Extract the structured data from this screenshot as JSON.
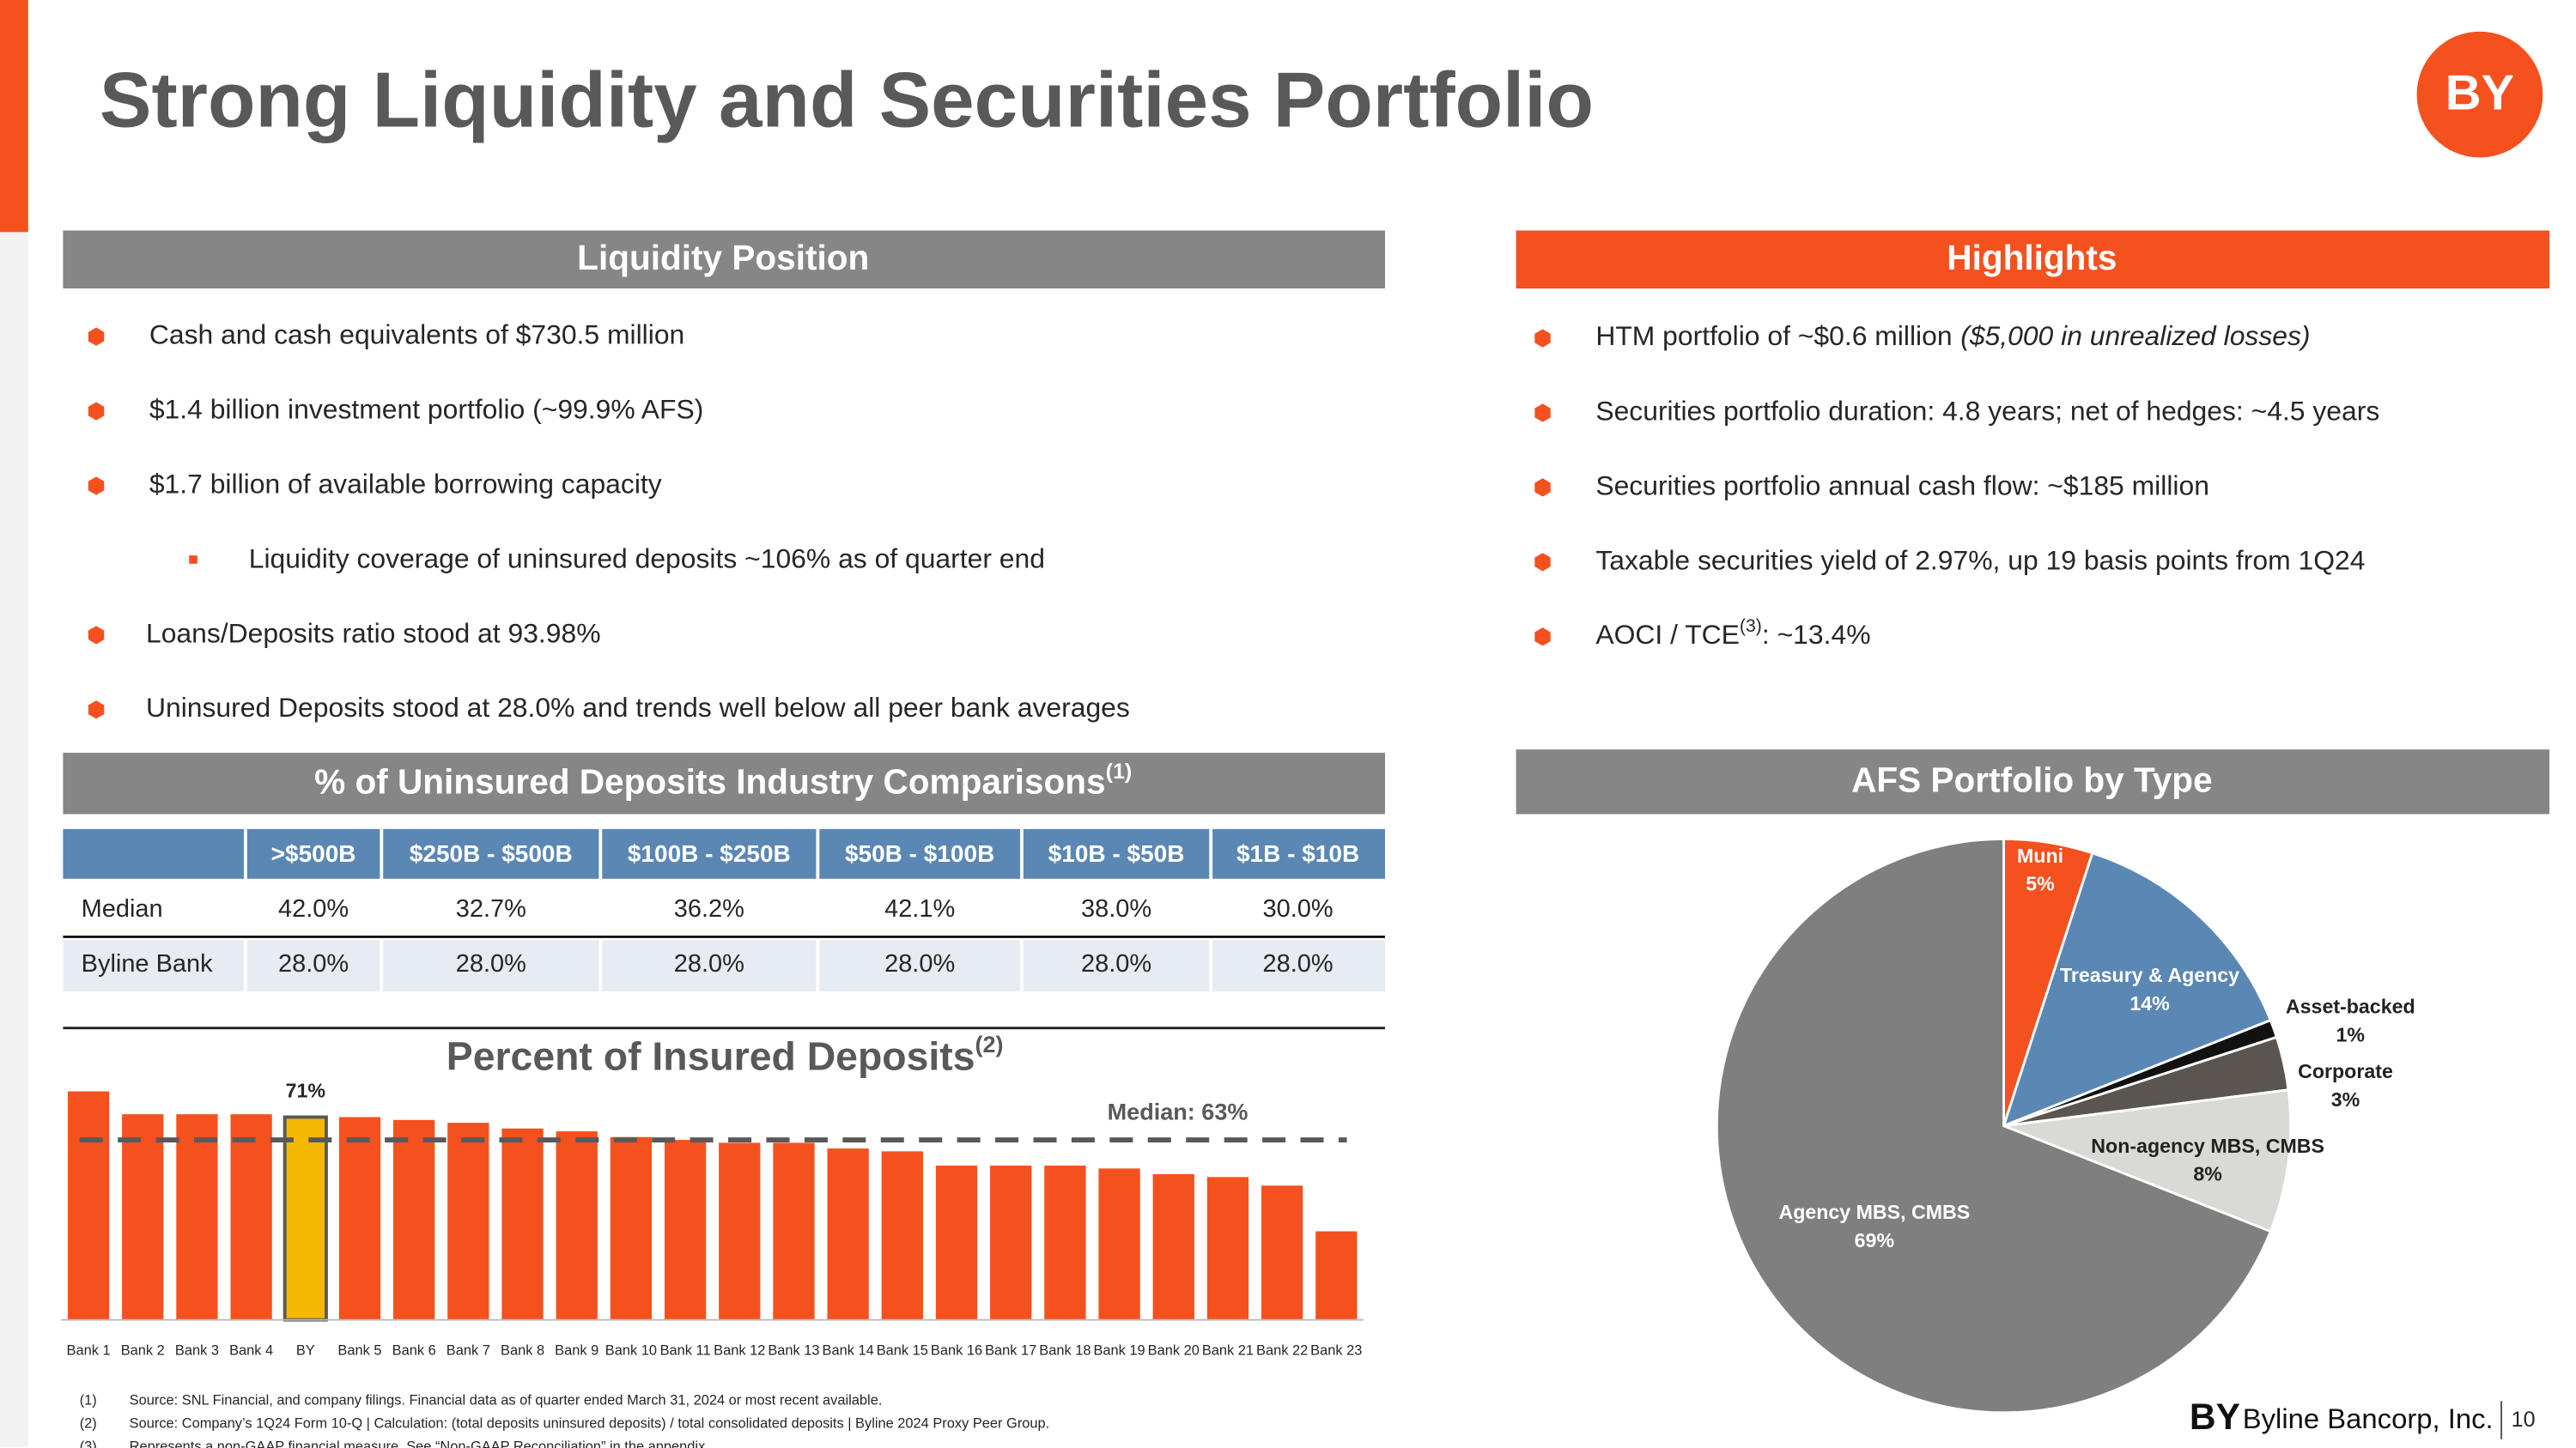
{
  "header": {
    "title": "Strong Liquidity and Securities Portfolio",
    "logo": "BY"
  },
  "liquidity": {
    "heading": "Liquidity Position",
    "bullets": [
      "Cash and cash equivalents of $730.5 million",
      "$1.4 billion investment portfolio (~99.9% AFS)",
      "$1.7 billion of available borrowing capacity"
    ],
    "sub_bullet": "Liquidity coverage of uninsured deposits ~106% as of quarter end",
    "more_bullets": [
      "Loans/Deposits ratio stood at 93.98%",
      "Uninsured Deposits stood at 28.0% and trends well below all peer bank averages"
    ]
  },
  "highlights": {
    "heading": "Highlights",
    "htm": "HTM portfolio of ~$0.6 million",
    "htm_note": "($5,000 in unrealized losses)",
    "bullets": [
      "Securities portfolio duration: 4.8 years; net of hedges: ~4.5 years",
      "Securities portfolio annual cash flow: ~$185 million",
      "Taxable securities yield of 2.97%, up 19 basis points from 1Q24"
    ],
    "aoci": {
      "text": "AOCI / TCE",
      "sup": "(3)",
      "rest": ": ~13.4%"
    }
  },
  "comparison": {
    "heading": "% of Uninsured Deposits Industry Comparisons",
    "heading_sup": "(1)",
    "columns": [
      ">$500B",
      "$250B - $500B",
      "$100B - $250B",
      "$50B - $100B",
      "$10B - $50B",
      "$1B - $10B"
    ],
    "rows": [
      {
        "label": "Median",
        "values": [
          "42.0%",
          "32.7%",
          "36.2%",
          "42.1%",
          "38.0%",
          "30.0%"
        ]
      },
      {
        "label": "Byline Bank",
        "values": [
          "28.0%",
          "28.0%",
          "28.0%",
          "28.0%",
          "28.0%",
          "28.0%"
        ]
      }
    ]
  },
  "chart_data": [
    {
      "type": "bar",
      "title": "Percent of Insured Deposits",
      "title_sup": "(2)",
      "categories": [
        "Bank 1",
        "Bank 2",
        "Bank 3",
        "Bank 4",
        "BY",
        "Bank 5",
        "Bank 6",
        "Bank 7",
        "Bank 8",
        "Bank 9",
        "Bank 10",
        "Bank 11",
        "Bank 12",
        "Bank 13",
        "Bank 14",
        "Bank 15",
        "Bank 16",
        "Bank 17",
        "Bank 18",
        "Bank 19",
        "Bank 20",
        "Bank 21",
        "Bank 22",
        "Bank 23"
      ],
      "values": [
        80,
        72,
        72,
        72,
        71,
        71,
        70,
        69,
        67,
        66,
        64,
        63,
        62,
        62,
        60,
        59,
        54,
        54,
        54,
        53,
        51,
        50,
        47,
        31
      ],
      "value_labels": [
        null,
        null,
        null,
        null,
        "71%",
        null,
        null,
        null,
        null,
        null,
        null,
        null,
        null,
        null,
        null,
        null,
        null,
        null,
        null,
        null,
        null,
        null,
        null,
        null
      ],
      "colors": [
        "#f4511e",
        "#f4511e",
        "#f4511e",
        "#f4511e",
        "#f5b800",
        "#f4511e",
        "#f4511e",
        "#f4511e",
        "#f4511e",
        "#f4511e",
        "#f4511e",
        "#f4511e",
        "#f4511e",
        "#f4511e",
        "#f4511e",
        "#f4511e",
        "#f4511e",
        "#f4511e",
        "#f4511e",
        "#f4511e",
        "#f4511e",
        "#f4511e",
        "#f4511e",
        "#f4511e"
      ],
      "median": {
        "value": 63,
        "label": "Median: 63%"
      },
      "ylim": [
        0,
        90
      ]
    },
    {
      "type": "pie",
      "title": "AFS Portfolio by Type",
      "categories": [
        "Muni",
        "Treasury & Agency",
        "Asset-backed",
        "Corporate",
        "Non-agency MBS, CMBS",
        "Agency MBS, CMBS"
      ],
      "values": [
        5,
        14,
        1,
        3,
        8,
        69
      ],
      "value_labels": [
        "5%",
        "14%",
        "1%",
        "3%",
        "8%",
        "69%"
      ],
      "colors": [
        "#f4511e",
        "#5b87b5",
        "#111111",
        "#5a5550",
        "#d9d9d6",
        "#7f7f7f"
      ]
    }
  ],
  "footnotes": [
    {
      "num": "(1)",
      "text": "Source: SNL Financial, and company filings. Financial data as of quarter ended March 31, 2024 or most recent available."
    },
    {
      "num": "(2)",
      "text": "Source: Company’s 1Q24 Form 10-Q | Calculation: (total deposits uninsured deposits) / total consolidated deposits | Byline 2024 Proxy Peer Group."
    },
    {
      "num": "(3)",
      "text": "Represents a non-GAAP financial measure.  See “Non-GAAP Reconciliation” in the appendix."
    }
  ],
  "footer": {
    "company": "Byline Bancorp, Inc.",
    "page": "10"
  }
}
